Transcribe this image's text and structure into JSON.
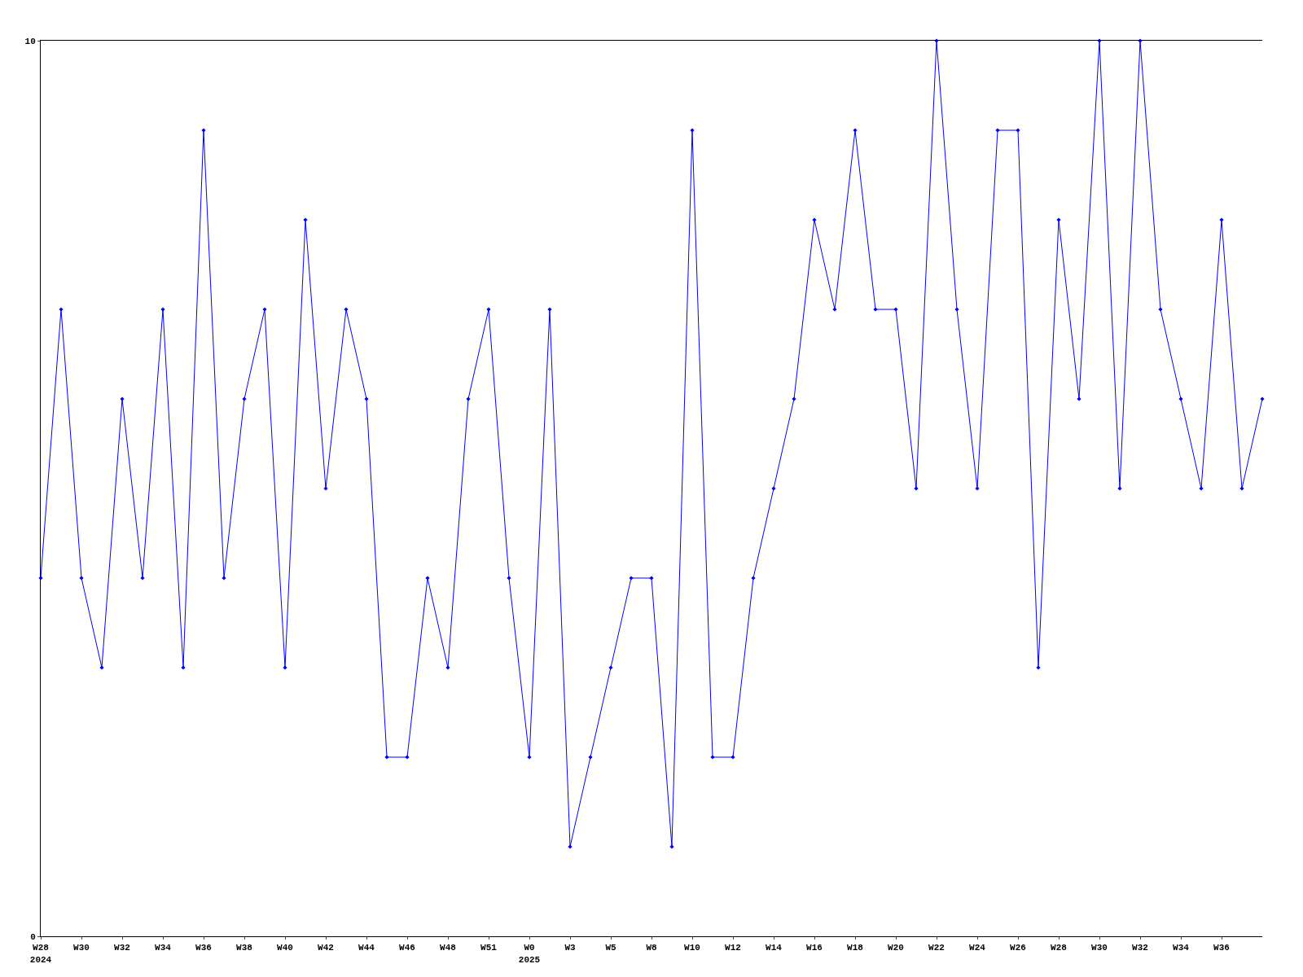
{
  "chart_data": {
    "type": "line",
    "categories": [
      "W28\n2024",
      null,
      "W30",
      null,
      "W32",
      null,
      "W34",
      null,
      "W36",
      null,
      "W38",
      null,
      "W40",
      null,
      "W42",
      null,
      "W44",
      null,
      "W46",
      null,
      "W48",
      null,
      "W51",
      null,
      "W0\n2025",
      null,
      "W3",
      null,
      "W5",
      null,
      "W8",
      null,
      "W10",
      null,
      "W12",
      null,
      "W14",
      null,
      "W16",
      null,
      "W18",
      null,
      "W20",
      null,
      "W22",
      null,
      "W24",
      null,
      "W26",
      null,
      "W28",
      null,
      "W30",
      null,
      "W32",
      null,
      "W34",
      null,
      "W36",
      null,
      null
    ],
    "series": [
      {
        "color": "#0000ff",
        "values": [
          4,
          7,
          4,
          3,
          6,
          4,
          7,
          3,
          9,
          4,
          6,
          7,
          3,
          8,
          5,
          7,
          6,
          2,
          2,
          4,
          3,
          6,
          7,
          4,
          2,
          7,
          1,
          2,
          3,
          4,
          4,
          1,
          9,
          2,
          2,
          4,
          5,
          6,
          8,
          7,
          9,
          7,
          7,
          5,
          10,
          7,
          5,
          9,
          9,
          3,
          8,
          6,
          10,
          5,
          10,
          7,
          6,
          5,
          8,
          5,
          6
        ]
      }
    ],
    "ylim": [
      0,
      10
    ],
    "yticks": [
      0,
      10
    ],
    "marker": "diamond",
    "line_style": "solid"
  }
}
